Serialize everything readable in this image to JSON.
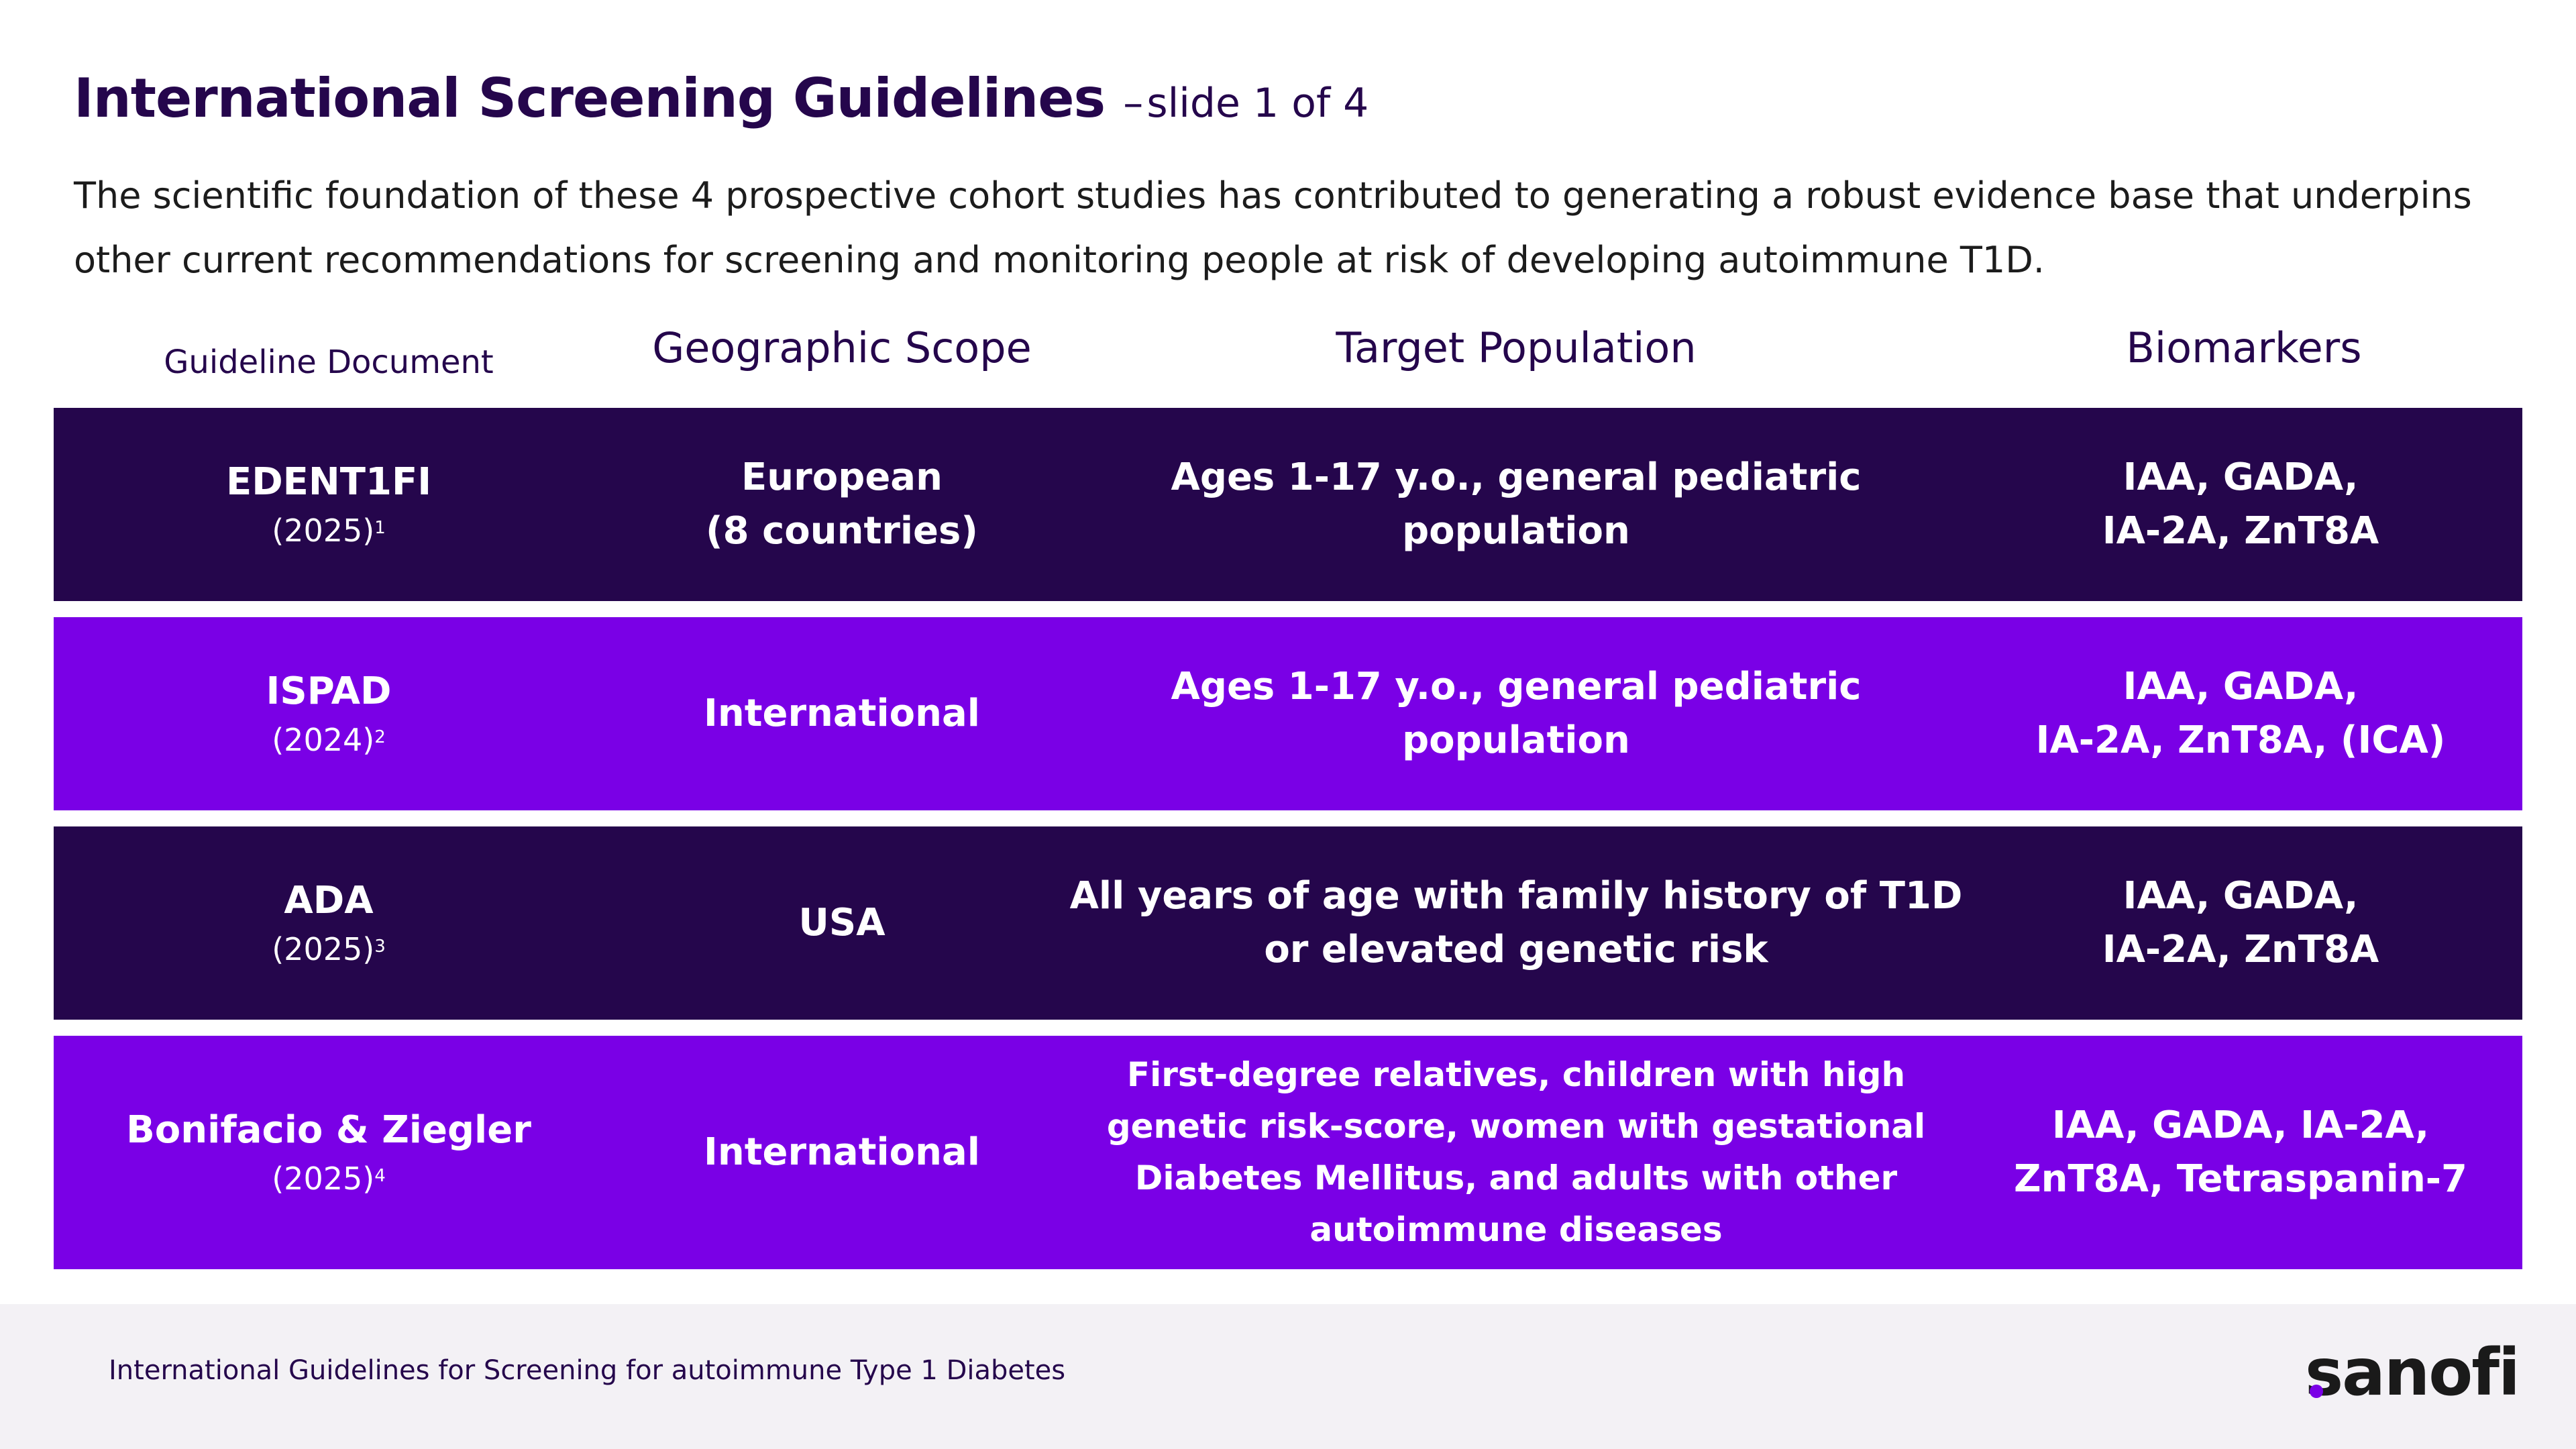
{
  "title": {
    "main": "International Screening Guidelines",
    "dash": "–",
    "sub": "slide 1 of 4"
  },
  "intro": "The scientific foundation of these 4 prospective cohort studies has contributed to generating a robust evidence base that underpins other current recommendations for screening and monitoring people at risk of developing autoimmune T1D.",
  "columns": [
    "Guideline Document",
    "Geographic Scope",
    "Target Population",
    "Biomarkers"
  ],
  "rows": [
    {
      "doc": "EDENT1FI",
      "year": "(2025)",
      "ref": "1",
      "scope_lines": [
        "European",
        "(8 countries)"
      ],
      "population_lines": [
        "Ages 1-17 y.o., general pediatric",
        "population"
      ],
      "biomarker_lines": [
        "IAA, GADA,",
        "IA-2A, ZnT8A"
      ]
    },
    {
      "doc": "ISPAD",
      "year": "(2024)",
      "ref": "2",
      "scope_lines": [
        "International"
      ],
      "population_lines": [
        "Ages 1-17 y.o., general pediatric",
        "population"
      ],
      "biomarker_lines": [
        "IAA, GADA,",
        "IA-2A, ZnT8A, (ICA)"
      ]
    },
    {
      "doc": "ADA",
      "year": "(2025)",
      "ref": "3",
      "scope_lines": [
        "USA"
      ],
      "population_lines": [
        "All years of age with family history of T1D",
        "or elevated genetic risk"
      ],
      "biomarker_lines": [
        "IAA, GADA,",
        "IA-2A, ZnT8A"
      ]
    },
    {
      "doc": "Bonifacio & Ziegler",
      "year": "(2025)",
      "ref": "4",
      "scope_lines": [
        "International"
      ],
      "population_lines": [
        "First-degree relatives, children with high",
        "genetic risk-score, women with gestational",
        "Diabetes Mellitus, and adults with other",
        "autoimmune diseases"
      ],
      "biomarker_lines": [
        "IAA, GADA, IA-2A,",
        "ZnT8A, Tetraspanin-7"
      ]
    }
  ],
  "footer": {
    "text": "International Guidelines for Screening for autoimmune Type 1 Diabetes",
    "logo": "sanofi"
  },
  "colors": {
    "dark_row": "#25064c",
    "violet_row": "#7a00e6",
    "title": "#25064c",
    "footer_bg": "#f3f1f5"
  }
}
